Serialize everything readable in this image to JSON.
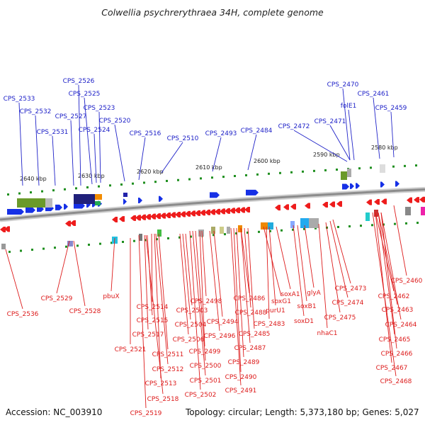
{
  "header": {
    "title": "Colwellia psychrerythraea 34H, complete genome"
  },
  "footer": {
    "accession": "Accession: NC_003910",
    "topology": "Topology: circular; Length: 5,373,180 bp; Genes: 5,027"
  },
  "colors": {
    "forward_label": "#1f22c8",
    "reverse_label": "#dd1b1b",
    "forward_gene": "#1630e6",
    "reverse_gene": "#ee1c1c",
    "backbone": "#8c8c8c",
    "tick": "#1f8f1f",
    "scale_text": "#222222"
  },
  "scale_ticks": [
    "2640 kbp",
    "2630 kbp",
    "2620 kbp",
    "2610 kbp",
    "2600 kbp",
    "2590 kbp",
    "2580 kbp"
  ],
  "forward_labels": [
    "CPS_2526",
    "CPS_2533",
    "CPS_2525",
    "CPS_2470",
    "CPS_2461",
    "CPS_2532",
    "CPS_2523",
    "folE1",
    "CPS_2459",
    "CPS_2527",
    "CPS_2520",
    "CPS_2531",
    "CPS_2524",
    "CPS_2516",
    "CPS_2510",
    "CPS_2493",
    "CPS_2484",
    "CPS_2472",
    "CPS_2471"
  ],
  "reverse_labels": [
    "CPS_2460",
    "CPS_2473",
    "soxA1",
    "glyA",
    "CPS_2462",
    "CPS_2486",
    "CPS_2529",
    "pbuX",
    "CPS_2498",
    "CPS_2474",
    "purU1",
    "CPS_2514",
    "CPS_2503",
    "CPS_2488",
    "soxB1",
    "CPS_2463",
    "CPS_2528",
    "CPS_2536",
    "CPS_2475",
    "CPS_2515",
    "CPS_2494",
    "soxD1",
    "CPS_2504",
    "CPS_2483",
    "CPS_2464",
    "CPS_2485",
    "nhaC1",
    "CPS_2517",
    "CPS_2496",
    "CPS_2506",
    "CPS_2465",
    "CPS_2487",
    "CPS_2499",
    "CPS_2521",
    "CPS_2466",
    "CPS_2511",
    "CPS_2489",
    "CPS_2500",
    "CPS_2512",
    "CPS_2467",
    "CPS_2490",
    "CPS_2513",
    "CPS_2501",
    "CPS_2468",
    "CPS_2491",
    "CPS_2502",
    "CPS_2518",
    "CPS_2519",
    "soxG1"
  ]
}
